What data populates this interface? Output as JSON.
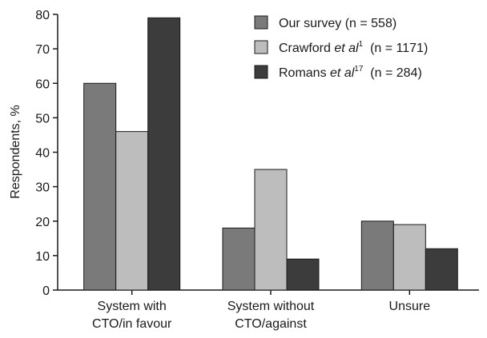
{
  "chart_data": {
    "type": "bar",
    "title": "",
    "xlabel": "",
    "ylabel": "Respondents, %",
    "ylim": [
      0,
      80
    ],
    "yticks": [
      0,
      10,
      20,
      30,
      40,
      50,
      60,
      70,
      80
    ],
    "grid": false,
    "legend_position": "top-right",
    "categories": [
      [
        "System with",
        "CTO/in favour"
      ],
      [
        "System without",
        "CTO/against"
      ],
      [
        "Unsure"
      ]
    ],
    "series": [
      {
        "name": "Our survey",
        "name_suffix": "",
        "sup": "",
        "n_text": "(n = 558)",
        "color": "#7a7a7a",
        "values": [
          60,
          18,
          20
        ]
      },
      {
        "name": "Crawford",
        "name_suffix": "et al",
        "sup": "1",
        "n_text": "(n = 1171)",
        "color": "#bdbdbd",
        "values": [
          46,
          35,
          19
        ]
      },
      {
        "name": "Romans",
        "name_suffix": "et al",
        "sup": "17",
        "n_text": "(n = 284)",
        "color": "#3c3c3c",
        "values": [
          79,
          9,
          12
        ]
      }
    ]
  }
}
